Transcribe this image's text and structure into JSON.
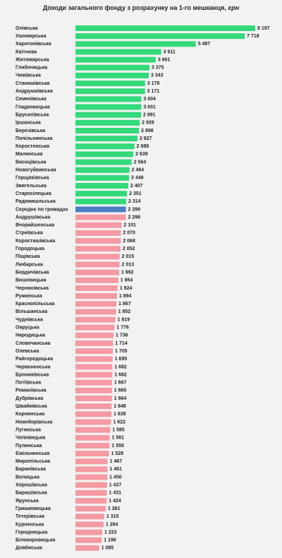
{
  "chart_data": {
    "type": "barh",
    "title": "Доходи загального фонду з розрахунку на 1-го мешканця,",
    "unit": "грн",
    "categories": [
      "Олівська",
      "Ушомирська",
      "Харитонівська",
      "Квітнева",
      "Житомирська",
      "Глибочицька",
      "Чижівська",
      "Станишівська",
      "Андрушківська",
      "Семенівська",
      "Гладковицька",
      "Брусилівська",
      "Іршанська",
      "Березівська",
      "Попільнянська",
      "Коростенська",
      "Малинська",
      "Висоцівська",
      "Новогуйвинська",
      "Горщиківська",
      "Звягельська",
      "Старосілецька",
      "Радомишльська",
      "Середнє по громадах",
      "Андрушівська",
      "Вчорайшенська",
      "Стриївська",
      "Коростишівська",
      "Городоцька",
      "Піщівська",
      "Любарська",
      "Бердичівська",
      "Вишевицька",
      "Черняхівська",
      "Ружинська",
      "Краснопільська",
      "Вільшанська",
      "Чуднівська",
      "Овруцька",
      "Народицька",
      "Словечанська",
      "Олевська",
      "Райгородоцька",
      "Червоненська",
      "Брониківська",
      "Потіївська",
      "Романівська",
      "Дубрівська",
      "Швайківська",
      "Корнинська",
      "Новоборівська",
      "Лугинська",
      "Чоповицька",
      "Пулинська",
      "Ємільчинська",
      "Миропільська",
      "Баранівська",
      "Волицька",
      "Хорошівська",
      "Барашівська",
      "Ярунська",
      "Гришковецька",
      "Тетерівська",
      "Курненська",
      "Городницька",
      "Білокоровицька",
      "Довбиська"
    ],
    "values": [
      8197,
      7718,
      5487,
      3911,
      3661,
      3375,
      3343,
      3178,
      3171,
      3004,
      3001,
      2991,
      2929,
      2898,
      2827,
      2688,
      2639,
      2564,
      2464,
      2448,
      2407,
      2351,
      2314,
      2299,
      2298,
      2101,
      2070,
      2068,
      2052,
      2015,
      2013,
      1992,
      1954,
      1924,
      1894,
      1867,
      1852,
      1819,
      1776,
      1736,
      1714,
      1705,
      1695,
      1682,
      1682,
      1667,
      1665,
      1664,
      1648,
      1639,
      1622,
      1585,
      1561,
      1555,
      1528,
      1467,
      1461,
      1450,
      1437,
      1431,
      1424,
      1381,
      1315,
      1284,
      1223,
      1196,
      1085
    ],
    "value_labels": [
      "8 197",
      "7 718",
      "5 487",
      "3 911",
      "3 661",
      "3 375",
      "3 343",
      "3 178",
      "3 171",
      "3 004",
      "3 001",
      "2 991",
      "2 929",
      "2 898",
      "2 827",
      "2 688",
      "2 639",
      "2 564",
      "2 464",
      "2 448",
      "2 407",
      "2 351",
      "2 314",
      "2 299",
      "2 298",
      "2 101",
      "2 070",
      "2 068",
      "2 052",
      "2 015",
      "2 013",
      "1 992",
      "1 954",
      "1 924",
      "1 894",
      "1 867",
      "1 852",
      "1 819",
      "1 776",
      "1 736",
      "1 714",
      "1 705",
      "1 695",
      "1 682",
      "1 682",
      "1 667",
      "1 665",
      "1 664",
      "1 648",
      "1 639",
      "1 622",
      "1 585",
      "1 561",
      "1 555",
      "1 528",
      "1 467",
      "1 461",
      "1 450",
      "1 437",
      "1 431",
      "1 424",
      "1 381",
      "1 315",
      "1 284",
      "1 223",
      "1 196",
      "1 085"
    ],
    "colors": [
      "#33d97a",
      "#33d97a",
      "#33d97a",
      "#33d97a",
      "#33d97a",
      "#33d97a",
      "#33d97a",
      "#33d97a",
      "#33d97a",
      "#33d97a",
      "#33d97a",
      "#33d97a",
      "#33d97a",
      "#33d97a",
      "#33d97a",
      "#33d97a",
      "#33d97a",
      "#33d97a",
      "#33d97a",
      "#33d97a",
      "#33d97a",
      "#33d97a",
      "#33d97a",
      "#4a7fc4",
      "#f59aa2",
      "#f59aa2",
      "#f59aa2",
      "#f59aa2",
      "#f59aa2",
      "#f59aa2",
      "#f59aa2",
      "#f59aa2",
      "#f59aa2",
      "#f59aa2",
      "#f59aa2",
      "#f59aa2",
      "#f59aa2",
      "#f59aa2",
      "#f59aa2",
      "#f59aa2",
      "#f59aa2",
      "#f59aa2",
      "#f59aa2",
      "#f59aa2",
      "#f59aa2",
      "#f59aa2",
      "#f59aa2",
      "#f59aa2",
      "#f59aa2",
      "#f59aa2",
      "#f59aa2",
      "#f59aa2",
      "#f59aa2",
      "#f59aa2",
      "#f59aa2",
      "#f59aa2",
      "#f59aa2",
      "#f59aa2",
      "#f59aa2",
      "#f59aa2",
      "#f59aa2",
      "#f59aa2",
      "#f59aa2",
      "#f59aa2",
      "#f59aa2",
      "#f59aa2",
      "#f59aa2"
    ]
  }
}
